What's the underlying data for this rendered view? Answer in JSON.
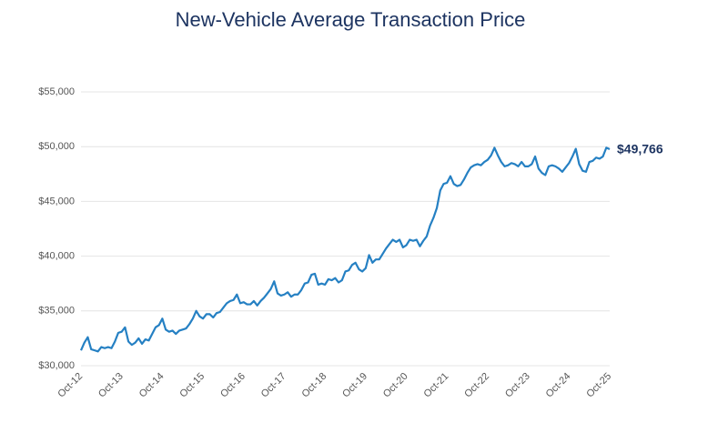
{
  "chart_data": {
    "type": "line",
    "title": "New-Vehicle Average Transaction Price",
    "categories": [
      "Oct-12",
      null,
      null,
      null,
      null,
      null,
      null,
      null,
      null,
      null,
      null,
      null,
      "Oct-13",
      null,
      null,
      null,
      null,
      null,
      null,
      null,
      null,
      null,
      null,
      null,
      "Oct-14",
      null,
      null,
      null,
      null,
      null,
      null,
      null,
      null,
      null,
      null,
      null,
      "Oct-15",
      null,
      null,
      null,
      null,
      null,
      null,
      null,
      null,
      null,
      null,
      null,
      "Oct-16",
      null,
      null,
      null,
      null,
      null,
      null,
      null,
      null,
      null,
      null,
      null,
      "Oct-17",
      null,
      null,
      null,
      null,
      null,
      null,
      null,
      null,
      null,
      null,
      null,
      "Oct-18",
      null,
      null,
      null,
      null,
      null,
      null,
      null,
      null,
      null,
      null,
      null,
      "Oct-19",
      null,
      null,
      null,
      null,
      null,
      null,
      null,
      null,
      null,
      null,
      null,
      "Oct-20",
      null,
      null,
      null,
      null,
      null,
      null,
      null,
      null,
      null,
      null,
      null,
      "Oct-21",
      null,
      null,
      null,
      null,
      null,
      null,
      null,
      null,
      null,
      null,
      null,
      "Oct-22",
      null,
      null,
      null,
      null,
      null,
      null,
      null,
      null,
      null,
      null,
      null,
      "Oct-23",
      null,
      null,
      null,
      null,
      null,
      null,
      null,
      null,
      null,
      null,
      null,
      "Oct-24",
      null,
      null,
      null,
      null,
      null,
      null,
      null,
      null,
      null,
      null,
      null,
      "Oct-25"
    ],
    "values": [
      31400,
      32100,
      32600,
      31500,
      31400,
      31300,
      31700,
      31600,
      31700,
      31600,
      32200,
      33000,
      33100,
      33500,
      32200,
      31900,
      32100,
      32500,
      32000,
      32400,
      32300,
      32900,
      33500,
      33700,
      34300,
      33300,
      33100,
      33200,
      32900,
      33200,
      33300,
      33400,
      33800,
      34300,
      35000,
      34500,
      34300,
      34700,
      34700,
      34400,
      34800,
      34900,
      35300,
      35700,
      35900,
      36000,
      36500,
      35700,
      35800,
      35600,
      35600,
      35900,
      35500,
      35900,
      36200,
      36600,
      37000,
      37700,
      36600,
      36400,
      36500,
      36700,
      36300,
      36500,
      36500,
      36900,
      37500,
      37600,
      38300,
      38400,
      37400,
      37500,
      37400,
      37900,
      37800,
      38000,
      37600,
      37800,
      38600,
      38700,
      39200,
      39400,
      38800,
      38600,
      38900,
      40100,
      39400,
      39700,
      39700,
      40200,
      40700,
      41100,
      41500,
      41300,
      41500,
      40800,
      41000,
      41500,
      41400,
      41500,
      40900,
      41400,
      41800,
      42800,
      43500,
      44400,
      46000,
      46600,
      46700,
      47300,
      46600,
      46400,
      46500,
      47000,
      47600,
      48100,
      48300,
      48400,
      48300,
      48600,
      48800,
      49200,
      49900,
      49200,
      48600,
      48200,
      48300,
      48500,
      48400,
      48200,
      48600,
      48200,
      48200,
      48400,
      49100,
      48000,
      47600,
      47400,
      48200,
      48300,
      48200,
      48000,
      47700,
      48100,
      48500,
      49100,
      49800,
      48400,
      47800,
      47700,
      48600,
      48700,
      49000,
      48900,
      49100,
      49900,
      49766
    ],
    "value_labels": [
      null,
      null,
      null,
      null,
      null,
      null,
      null,
      null,
      null,
      null,
      null,
      null,
      null,
      null,
      null,
      null,
      null,
      null,
      null,
      null,
      null,
      null,
      null,
      null,
      null,
      null,
      null,
      null,
      null,
      null,
      null,
      null,
      null,
      null,
      null,
      null,
      null,
      null,
      null,
      null,
      null,
      null,
      null,
      null,
      null,
      null,
      null,
      null,
      null,
      null,
      null,
      null,
      null,
      null,
      null,
      null,
      null,
      null,
      null,
      null,
      null,
      null,
      null,
      null,
      null,
      null,
      null,
      null,
      null,
      null,
      null,
      null,
      null,
      null,
      null,
      null,
      null,
      null,
      null,
      null,
      null,
      null,
      null,
      null,
      null,
      null,
      null,
      null,
      null,
      null,
      null,
      null,
      null,
      null,
      null,
      null,
      null,
      null,
      null,
      null,
      null,
      null,
      null,
      null,
      null,
      null,
      null,
      null,
      null,
      null,
      null,
      null,
      null,
      null,
      null,
      null,
      null,
      null,
      null,
      null,
      null,
      null,
      null,
      null,
      null,
      null,
      null,
      null,
      null,
      null,
      null,
      null,
      null,
      null,
      null,
      null,
      null,
      null,
      null,
      null,
      null,
      null,
      null,
      null,
      null,
      null,
      null,
      null,
      null,
      null,
      null,
      null,
      null,
      null,
      null,
      null,
      "$49,766"
    ],
    "color": "#2580c3",
    "ylim": [
      30000,
      55000
    ],
    "yticks": [
      {
        "value": 30000,
        "label": "$30,000"
      },
      {
        "value": 35000,
        "label": "$35,000"
      },
      {
        "value": 40000,
        "label": "$40,000"
      },
      {
        "value": 45000,
        "label": "$45,000"
      },
      {
        "value": 50000,
        "label": "$50,000"
      },
      {
        "value": 55000,
        "label": "$55,000"
      }
    ],
    "grid": true
  }
}
